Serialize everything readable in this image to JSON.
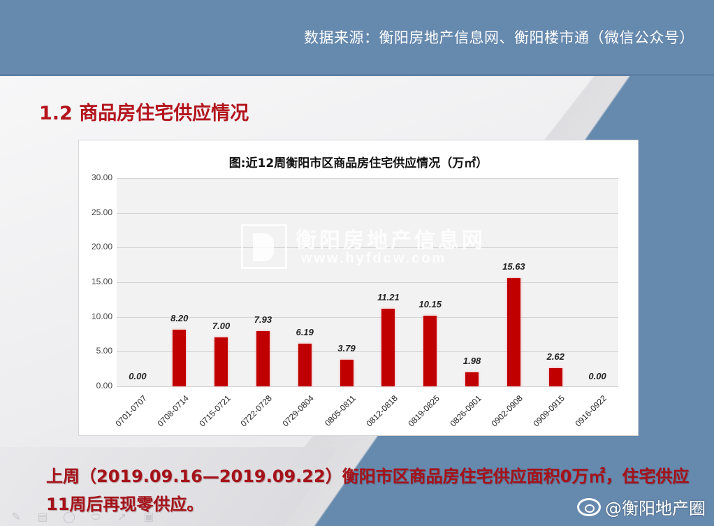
{
  "header": {
    "source": "数据来源：衡阳房地产信息网、衡阳楼市通（微信公众号）"
  },
  "section": {
    "title": "1.2 商品房住宅供应情况"
  },
  "watermark": {
    "name": "衡阳房地产信息网",
    "url": "www.hyfdcw.com"
  },
  "summary": {
    "text": "上周（2019.09.16—2019.09.22）衡阳市区商品房住宅供应面积0万㎡，住宅供应11周后再现零供应。"
  },
  "toolbar": {
    "icons": [
      "pen-icon",
      "keyboard-icon",
      "mouse-icon",
      "eraser-icon",
      "pointer-icon",
      "camera-icon"
    ]
  },
  "weibo": {
    "handle": "@衡阳地产圈"
  },
  "colors": {
    "band": "#6689ae",
    "title_red": "#b3141d",
    "bar": "#c00000"
  },
  "chart_data": {
    "type": "bar",
    "title": "图:近12周衡阳市区商品房住宅供应情况（万㎡）",
    "xlabel": "",
    "ylabel": "",
    "ylim": [
      0,
      30
    ],
    "yticks": [
      "0.00",
      "5.00",
      "10.00",
      "15.00",
      "20.00",
      "25.00",
      "30.00"
    ],
    "grid": true,
    "legend": null,
    "categories": [
      "0701-0707",
      "0708-0714",
      "0715-0721",
      "0722-0728",
      "0729-0804",
      "0805-0811",
      "0812-0818",
      "0819-0825",
      "0826-0901",
      "0902-0908",
      "0909-0915",
      "0916-0922"
    ],
    "values": [
      0.0,
      8.2,
      7.0,
      7.93,
      6.19,
      3.79,
      11.21,
      10.15,
      1.98,
      15.63,
      2.62,
      0.0
    ],
    "labels": [
      "0.00",
      "8.20",
      "7.00",
      "7.93",
      "6.19",
      "3.79",
      "11.21",
      "10.15",
      "1.98",
      "15.63",
      "2.62",
      "0.00"
    ]
  }
}
